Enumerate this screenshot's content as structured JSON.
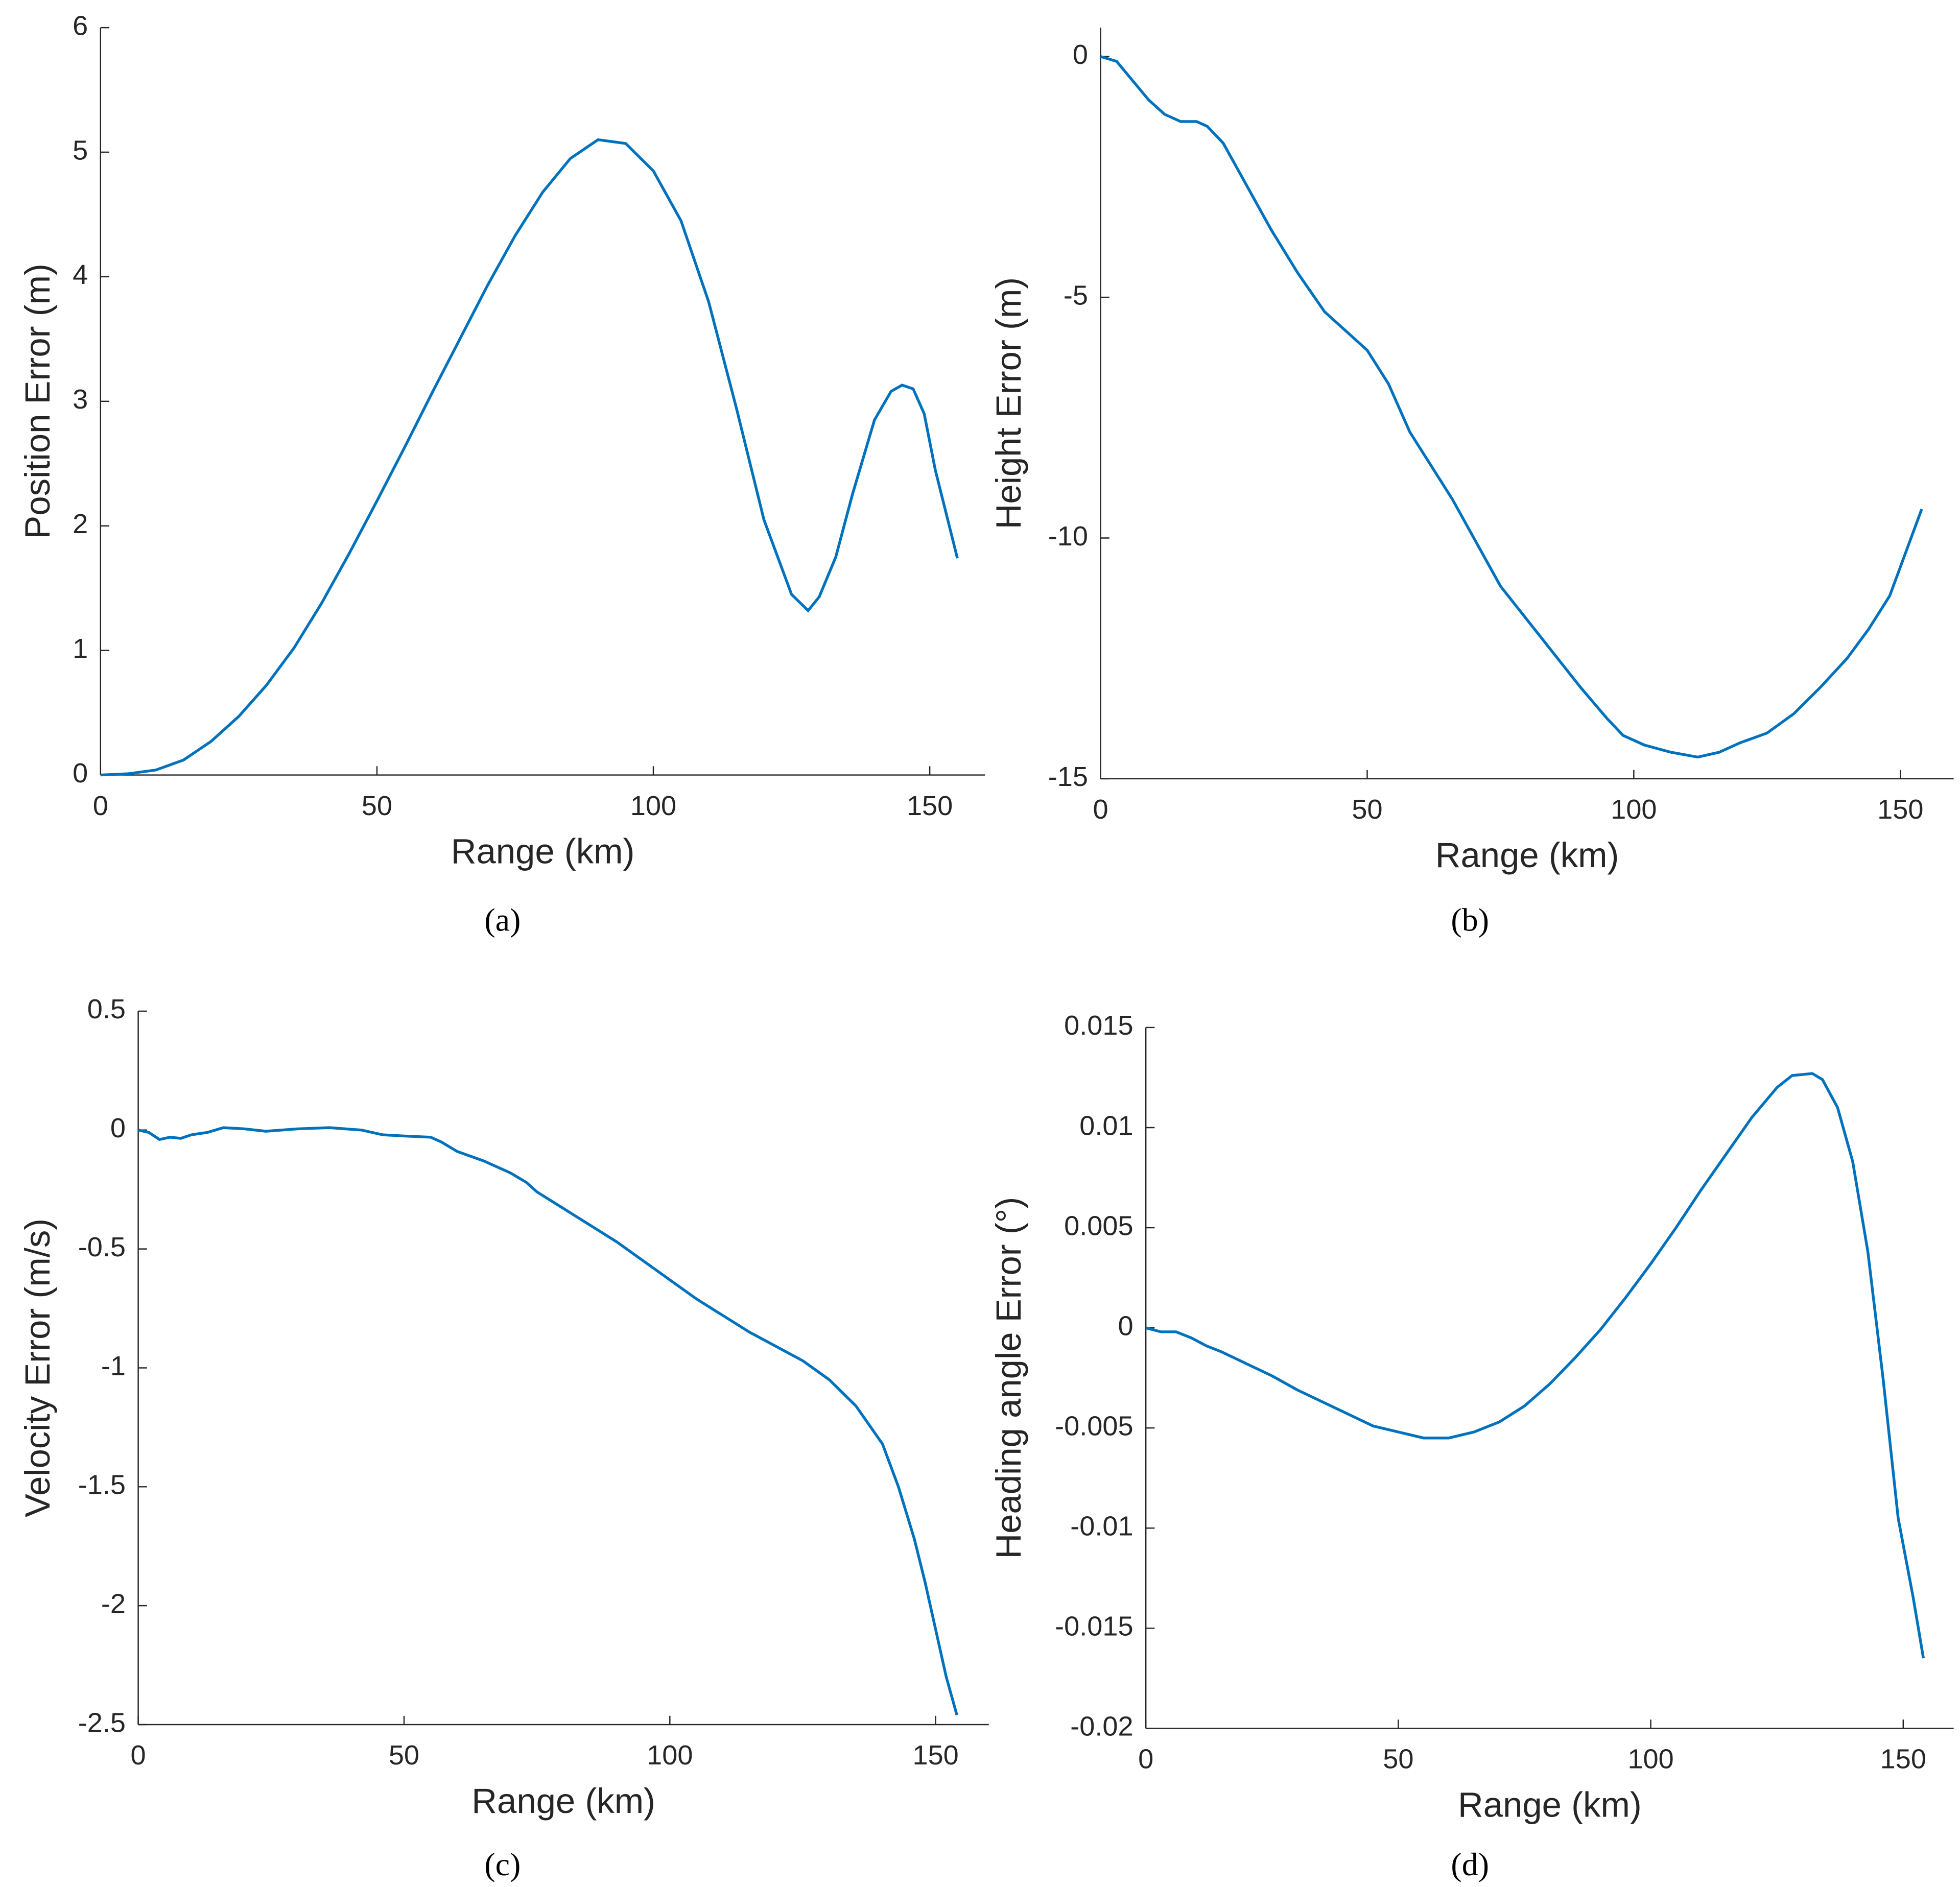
{
  "chart_data": [
    {
      "type": "line",
      "xlabel": "Range (km)",
      "ylabel": "Position Error (m)",
      "caption": "(a)",
      "x": [
        0,
        5,
        10,
        15,
        20,
        25,
        30,
        35,
        40,
        45,
        50,
        55,
        60,
        65,
        70,
        75,
        80,
        85,
        90,
        95,
        100,
        105,
        110,
        115,
        120,
        125,
        128,
        130,
        133,
        136,
        140,
        143,
        145,
        147,
        149,
        151,
        155
      ],
      "values": [
        0,
        0.01,
        0.04,
        0.12,
        0.27,
        0.47,
        0.72,
        1.02,
        1.38,
        1.78,
        2.2,
        2.63,
        3.07,
        3.5,
        3.93,
        4.33,
        4.68,
        4.95,
        5.1,
        5.07,
        4.85,
        4.45,
        3.8,
        2.95,
        2.05,
        1.45,
        1.32,
        1.43,
        1.75,
        2.25,
        2.85,
        3.08,
        3.13,
        3.1,
        2.9,
        2.45,
        1.74
      ],
      "color": "#0072bd",
      "xlim": [
        0,
        160
      ],
      "ylim": [
        0,
        6
      ],
      "xticks": [
        0,
        50,
        100,
        150
      ],
      "yticks": [
        0,
        1,
        2,
        3,
        4,
        5,
        6
      ]
    },
    {
      "type": "line",
      "xlabel": "Range (km)",
      "ylabel": "Height Error (m)",
      "caption": "(b)",
      "x": [
        0,
        3,
        6,
        9,
        12,
        15,
        18,
        20,
        23,
        27,
        32,
        37,
        42,
        47,
        50,
        54,
        58,
        62,
        66,
        70,
        75,
        80,
        85,
        90,
        95,
        98,
        102,
        107,
        112,
        116,
        120,
        125,
        130,
        135,
        140,
        144,
        148,
        151,
        154
      ],
      "values": [
        0,
        -0.1,
        -0.5,
        -0.9,
        -1.2,
        -1.35,
        -1.35,
        -1.45,
        -1.8,
        -2.6,
        -3.6,
        -4.5,
        -5.3,
        -5.8,
        -6.1,
        -6.8,
        -7.8,
        -8.5,
        -9.2,
        -10.0,
        -11.0,
        -11.7,
        -12.4,
        -13.1,
        -13.75,
        -14.1,
        -14.3,
        -14.45,
        -14.55,
        -14.45,
        -14.25,
        -14.05,
        -13.65,
        -13.1,
        -12.5,
        -11.9,
        -11.2,
        -10.3,
        -9.4
      ],
      "color": "#0072bd",
      "xlim": [
        0,
        160
      ],
      "ylim": [
        -15,
        0.6
      ],
      "xticks": [
        0,
        50,
        100,
        150
      ],
      "yticks": [
        -15,
        -10,
        -5,
        0
      ]
    },
    {
      "type": "line",
      "xlabel": "Range (km)",
      "ylabel": "Velocity Error (m/s)",
      "caption": "(c)",
      "x": [
        0,
        2,
        4,
        6,
        8,
        10,
        13,
        16,
        20,
        24,
        30,
        36,
        42,
        46,
        50,
        55,
        57,
        60,
        65,
        70,
        73,
        75,
        80,
        85,
        90,
        95,
        100,
        105,
        110,
        115,
        120,
        125,
        130,
        135,
        140,
        143,
        146,
        148,
        150,
        152,
        154
      ],
      "values": [
        0,
        -0.01,
        -0.04,
        -0.03,
        -0.035,
        -0.02,
        -0.01,
        0.01,
        0.005,
        -0.005,
        0.005,
        0.01,
        0,
        -0.02,
        -0.025,
        -0.03,
        -0.05,
        -0.09,
        -0.13,
        -0.18,
        -0.22,
        -0.26,
        -0.33,
        -0.4,
        -0.47,
        -0.55,
        -0.63,
        -0.71,
        -0.78,
        -0.85,
        -0.91,
        -0.97,
        -1.05,
        -1.16,
        -1.32,
        -1.5,
        -1.72,
        -1.9,
        -2.1,
        -2.3,
        -2.46
      ],
      "color": "#0072bd",
      "xlim": [
        0,
        160
      ],
      "ylim": [
        -2.5,
        0.5
      ],
      "xticks": [
        0,
        50,
        100,
        150
      ],
      "yticks": [
        -2.5,
        -2,
        -1.5,
        -1,
        -0.5,
        0,
        0.5
      ]
    },
    {
      "type": "line",
      "xlabel": "Range (km)",
      "ylabel": "Heading angle Error (°)",
      "caption": "(d)",
      "x": [
        0,
        3,
        6,
        9,
        12,
        15,
        20,
        25,
        30,
        35,
        40,
        45,
        50,
        55,
        60,
        65,
        70,
        75,
        80,
        85,
        90,
        95,
        100,
        105,
        110,
        115,
        120,
        125,
        128,
        132,
        134,
        137,
        140,
        143,
        146,
        149,
        152,
        154
      ],
      "values": [
        0,
        -0.0002,
        -0.0002,
        -0.0005,
        -0.0009,
        -0.0012,
        -0.0018,
        -0.0024,
        -0.0031,
        -0.0037,
        -0.0043,
        -0.0049,
        -0.0052,
        -0.0055,
        -0.0055,
        -0.0052,
        -0.0047,
        -0.0039,
        -0.0028,
        -0.0015,
        -0.0001,
        0.0015,
        0.0032,
        0.005,
        0.0069,
        0.0087,
        0.0105,
        0.012,
        0.0126,
        0.0127,
        0.0124,
        0.011,
        0.0083,
        0.0038,
        -0.0025,
        -0.0095,
        -0.0135,
        -0.0165
      ],
      "color": "#0072bd",
      "xlim": [
        0,
        160
      ],
      "ylim": [
        -0.02,
        0.015
      ],
      "xticks": [
        0,
        50,
        100,
        150
      ],
      "yticks": [
        -0.02,
        -0.015,
        -0.01,
        -0.005,
        0,
        0.005,
        0.01,
        0.015
      ]
    }
  ]
}
